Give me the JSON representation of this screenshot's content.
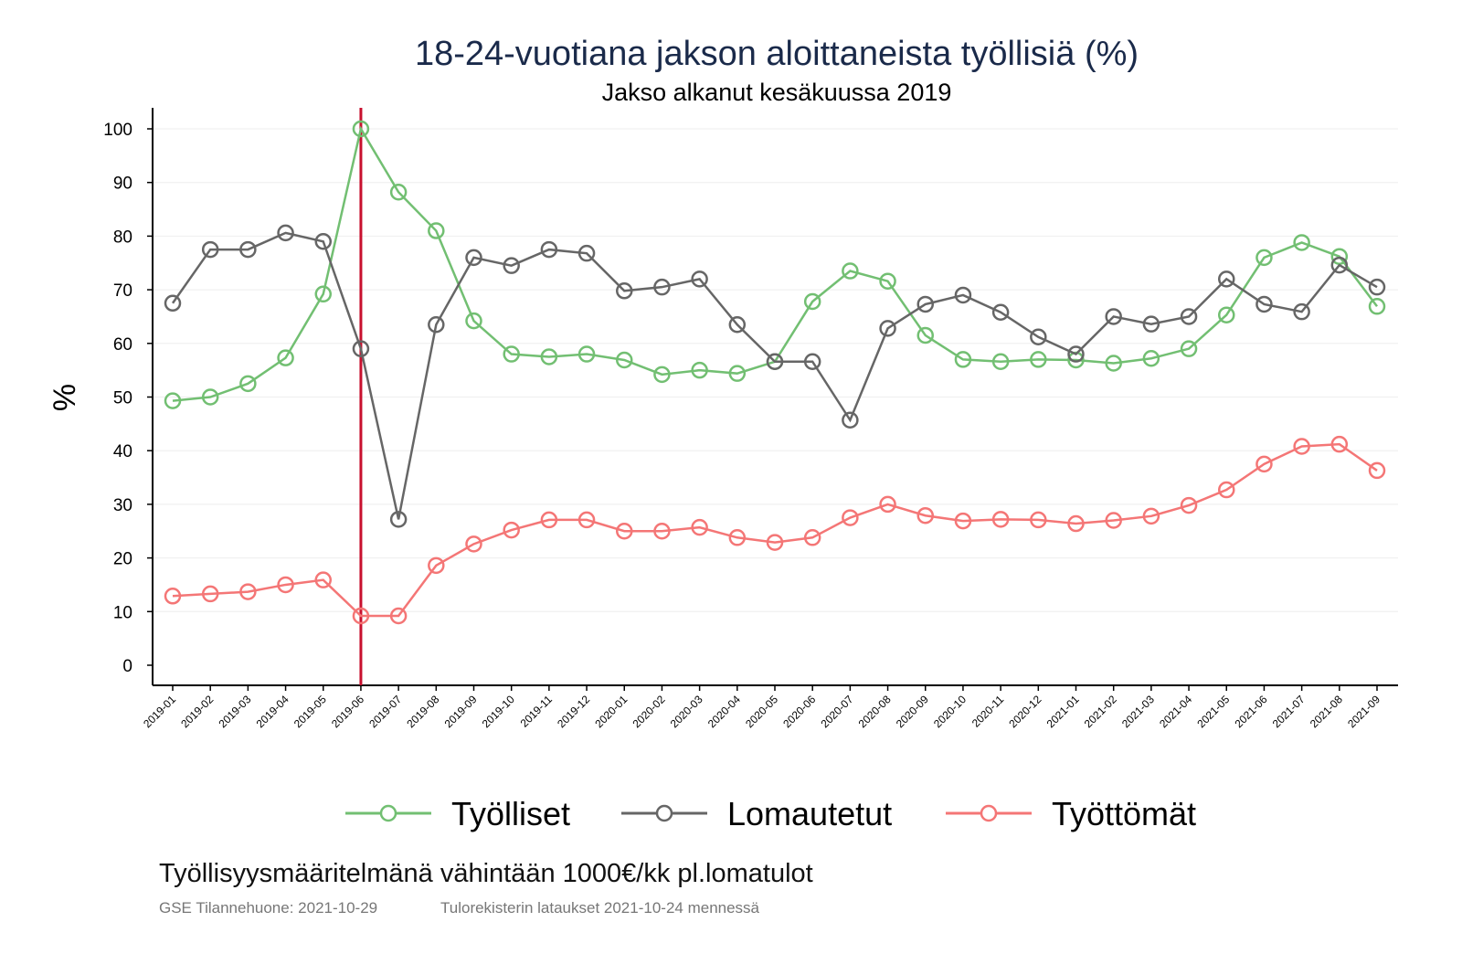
{
  "chart_data": {
    "type": "line",
    "title": "18-24-vuotiana jakson aloittaneista työllisiä (%)",
    "subtitle": "Jakso alkanut kesäkuussa 2019",
    "xlabel": "",
    "ylabel": "%",
    "ylim": [
      0,
      100
    ],
    "yticks": [
      0,
      10,
      20,
      30,
      40,
      50,
      60,
      70,
      80,
      90,
      100
    ],
    "grid": true,
    "legend_position": "bottom",
    "reference_line": {
      "x": "2019-06",
      "color": "#c8102e"
    },
    "categories": [
      "2019-01",
      "2019-02",
      "2019-03",
      "2019-04",
      "2019-05",
      "2019-06",
      "2019-07",
      "2019-08",
      "2019-09",
      "2019-10",
      "2019-11",
      "2019-12",
      "2020-01",
      "2020-02",
      "2020-03",
      "2020-04",
      "2020-05",
      "2020-06",
      "2020-07",
      "2020-08",
      "2020-09",
      "2020-10",
      "2020-11",
      "2020-12",
      "2021-01",
      "2021-02",
      "2021-03",
      "2021-04",
      "2021-05",
      "2021-06",
      "2021-07",
      "2021-08",
      "2021-09"
    ],
    "series": [
      {
        "name": "Työlliset",
        "color": "#72bf72",
        "values": [
          49.3,
          50,
          52.5,
          57.3,
          69.2,
          100,
          88.2,
          81,
          64.2,
          58,
          57.5,
          58,
          56.9,
          54.2,
          55,
          54.4,
          56.6,
          67.8,
          73.5,
          71.6,
          61.5,
          57,
          56.6,
          57,
          56.9,
          56.3,
          57.2,
          59,
          65.3,
          76,
          78.8,
          76.2,
          66.9
        ]
      },
      {
        "name": "Lomautetut",
        "color": "#666666",
        "values": [
          67.5,
          77.5,
          77.5,
          80.6,
          79,
          59,
          27.2,
          63.5,
          76,
          74.5,
          77.5,
          76.8,
          69.8,
          70.5,
          72,
          63.5,
          56.6,
          56.6,
          45.7,
          62.8,
          67.3,
          69,
          65.8,
          61.2,
          58,
          65,
          63.6,
          65,
          72,
          67.3,
          65.9,
          74.6,
          70.5
        ]
      },
      {
        "name": "Työttömät",
        "color": "#f47676",
        "values": [
          12.9,
          13.3,
          13.7,
          15,
          15.9,
          9.2,
          9.2,
          18.6,
          22.6,
          25.2,
          27.1,
          27.1,
          25,
          25,
          25.7,
          23.8,
          22.9,
          23.8,
          27.5,
          30,
          27.9,
          26.9,
          27.2,
          27.1,
          26.4,
          27,
          27.8,
          29.8,
          32.7,
          37.5,
          40.8,
          41.2,
          36.3
        ]
      }
    ]
  },
  "footer": {
    "definition": "Työllisyysmääritelmänä vähintään 1000€/kk pl.lomatulot",
    "source": "GSE Tilannehuone: 2021-10-29",
    "data_note": "Tulorekisterin lataukset 2021-10-24 mennessä"
  }
}
